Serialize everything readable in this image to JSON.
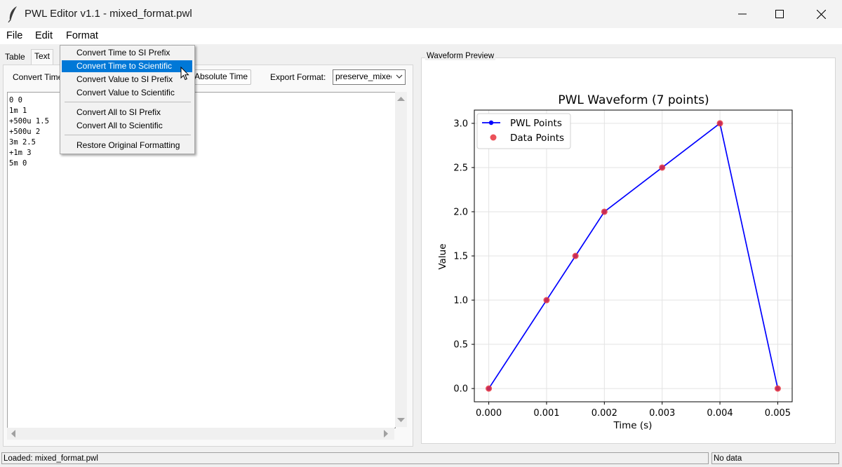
{
  "window": {
    "title": "PWL Editor v1.1 - mixed_format.pwl"
  },
  "menubar": {
    "file": "File",
    "edit": "Edit",
    "format": "Format"
  },
  "tabs": {
    "table": "Table",
    "text": "Text"
  },
  "toolbar": {
    "convert_label": "Convert Time",
    "absolute_time_button": "Absolute Time",
    "export_format_label": "Export Format:",
    "export_format_value": "preserve_mixed"
  },
  "editor": {
    "lines": [
      "0 0",
      "1m 1",
      "+500u 1.5",
      "+500u 2",
      "3m 2.5",
      "+1m 3",
      "5m 0"
    ]
  },
  "format_menu": {
    "items": [
      "Convert Time to SI Prefix",
      "Convert Time to Scientific",
      "Convert Value to SI Prefix",
      "Convert Value to Scientific",
      "Convert All to SI Prefix",
      "Convert All to Scientific",
      "Restore Original Formatting"
    ],
    "highlighted_index": 1
  },
  "preview": {
    "frame_label": "Waveform Preview"
  },
  "status": {
    "left": "Loaded: mixed_format.pwl",
    "right": "No data"
  },
  "colors": {
    "line": "#0000ff",
    "points": "#e8323c",
    "highlight": "#0078d7"
  },
  "chart_data": {
    "type": "line",
    "title": "PWL Waveform (7 points)",
    "xlabel": "Time (s)",
    "ylabel": "Value",
    "x": [
      0,
      0.001,
      0.0015,
      0.002,
      0.003,
      0.004,
      0.005
    ],
    "y": [
      0,
      1,
      1.5,
      2,
      2.5,
      3,
      0
    ],
    "xlim": [
      -0.00025,
      0.00525
    ],
    "ylim": [
      -0.15,
      3.15
    ],
    "xticks": [
      "0.000",
      "0.001",
      "0.002",
      "0.003",
      "0.004",
      "0.005"
    ],
    "yticks": [
      "0.0",
      "0.5",
      "1.0",
      "1.5",
      "2.0",
      "2.5",
      "3.0"
    ],
    "legend": [
      "PWL Points",
      "Data Points"
    ],
    "legend_position": "top-left",
    "grid": true
  }
}
